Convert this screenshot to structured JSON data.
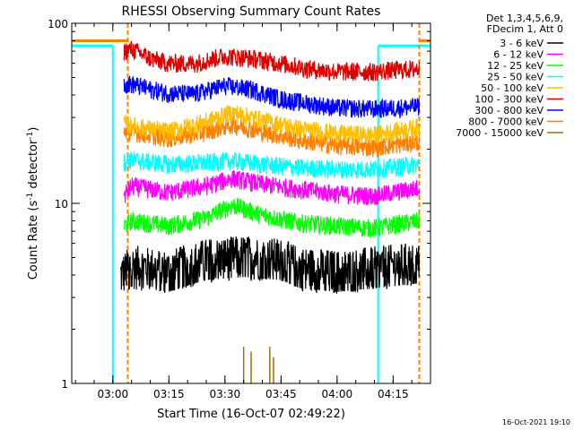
{
  "chart_data": {
    "type": "line",
    "title": "RHESSI Observing Summary Count Rates",
    "xlabel": "Start Time (16-Oct-07 02:49:22)",
    "ylabel_prefix": "Count Rate (s",
    "ylabel_sup": "-1",
    "ylabel_mid": " detector",
    "ylabel_suffix": ")",
    "yscale": "log",
    "ylim": [
      1,
      100
    ],
    "xlim": [
      "02:49",
      "04:25"
    ],
    "x_ticks": [
      "03:00",
      "03:15",
      "03:30",
      "03:45",
      "04:00",
      "04:15"
    ],
    "y_ticks": [
      "1",
      "10",
      "100"
    ],
    "legend_position": "outside-right",
    "legend_header": [
      "Det 1,3,4,5,6,9,",
      "FDecim 1, Att 0"
    ],
    "series": [
      {
        "name": "3 - 6 keV",
        "color": "#000000",
        "anchors_time": [
          "03:02",
          "03:05",
          "03:15",
          "03:25",
          "03:35",
          "03:45",
          "03:50",
          "04:00",
          "04:10",
          "04:22"
        ],
        "anchors_value": [
          4.0,
          4.6,
          4.3,
          5.0,
          5.2,
          5.0,
          4.5,
          4.3,
          4.5,
          4.8
        ]
      },
      {
        "name": "6 - 12 keV",
        "color": "#ff00ff",
        "anchors_time": [
          "03:03",
          "03:05",
          "03:15",
          "03:25",
          "03:32",
          "03:40",
          "03:50",
          "04:00",
          "04:10",
          "04:22"
        ],
        "anchors_value": [
          11.0,
          12.5,
          11.5,
          12.5,
          13.8,
          12.8,
          12.0,
          11.3,
          11.0,
          12.2
        ]
      },
      {
        "name": "12 - 25 keV",
        "color": "#00ff00",
        "anchors_time": [
          "03:03",
          "03:05",
          "03:15",
          "03:25",
          "03:32",
          "03:40",
          "03:50",
          "04:00",
          "04:10",
          "04:22"
        ],
        "anchors_value": [
          7.5,
          8.0,
          7.5,
          8.3,
          9.8,
          8.6,
          7.8,
          7.5,
          7.3,
          8.0
        ]
      },
      {
        "name": "25 - 50 keV",
        "color": "#00ffff",
        "anchors_time": [
          "03:03",
          "03:05",
          "03:15",
          "03:25",
          "03:32",
          "03:40",
          "03:50",
          "04:00",
          "04:10",
          "04:22"
        ],
        "anchors_value": [
          17.0,
          17.5,
          16.5,
          16.8,
          17.3,
          16.5,
          15.8,
          15.5,
          15.5,
          16.5
        ]
      },
      {
        "name": "50 - 100 keV",
        "color": "#ffbf00",
        "anchors_time": [
          "03:03",
          "03:05",
          "03:15",
          "03:25",
          "03:32",
          "03:40",
          "03:50",
          "04:00",
          "04:10",
          "04:22"
        ],
        "anchors_value": [
          28.0,
          27.0,
          25.0,
          28.5,
          32.0,
          29.0,
          26.0,
          24.5,
          24.0,
          26.5
        ]
      },
      {
        "name": "100 - 300 keV",
        "color": "#dd0000",
        "anchors_time": [
          "03:03",
          "03:05",
          "03:10",
          "03:15",
          "03:22",
          "03:30",
          "03:37",
          "03:45",
          "03:52",
          "04:00",
          "04:10",
          "04:22"
        ],
        "anchors_value": [
          70.0,
          72.0,
          64.0,
          60.0,
          60.0,
          66.0,
          64.0,
          60.0,
          56.0,
          54.0,
          54.0,
          56.0
        ]
      },
      {
        "name": "300 - 800 keV",
        "color": "#0000ff",
        "anchors_time": [
          "03:03",
          "03:05",
          "03:10",
          "03:15",
          "03:22",
          "03:30",
          "03:37",
          "03:45",
          "03:52",
          "04:00",
          "04:10",
          "04:22"
        ],
        "anchors_value": [
          46.0,
          46.0,
          43.0,
          41.0,
          40.5,
          45.0,
          43.0,
          38.0,
          36.0,
          34.0,
          33.5,
          34.5
        ]
      },
      {
        "name": "800 - 7000 keV",
        "color": "#ff7f00",
        "anchors_time": [
          "03:03",
          "03:05",
          "03:15",
          "03:25",
          "03:32",
          "03:40",
          "03:50",
          "04:00",
          "04:10",
          "04:22"
        ],
        "anchors_value": [
          25.5,
          25.0,
          23.0,
          25.0,
          27.5,
          25.0,
          22.5,
          21.0,
          20.5,
          22.0
        ]
      },
      {
        "name": "7000 - 15000 keV",
        "color": "#a07000",
        "anchors_time": [],
        "anchors_value": []
      }
    ],
    "attenuator_line": {
      "color": "#00ffff",
      "level": 75,
      "segments": [
        [
          "02:49",
          "03:00"
        ],
        [
          "04:11",
          "04:25"
        ]
      ],
      "gap_value": 1.0
    },
    "orange_line": {
      "color": "#ff7f00",
      "level": 80,
      "segments": [
        [
          "02:49",
          "03:04"
        ],
        [
          "04:22",
          "04:25"
        ]
      ]
    },
    "footer_timestamp": "16-Oct-2021 19:10"
  }
}
